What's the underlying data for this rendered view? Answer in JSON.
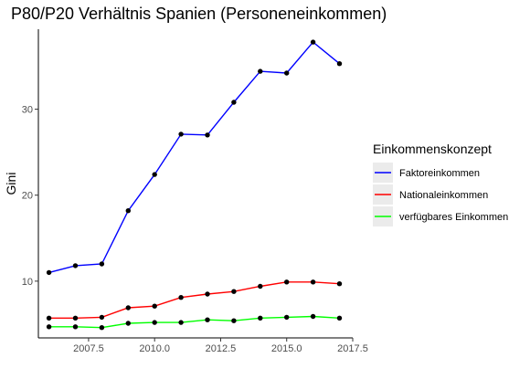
{
  "chart_data": {
    "type": "line",
    "title": "P80/P20 Verhältnis Spanien (Personeneinkommen)",
    "xlabel": "",
    "ylabel": "Gini",
    "x": [
      2006,
      2007,
      2008,
      2009,
      2010,
      2011,
      2012,
      2013,
      2014,
      2015,
      2016,
      2017
    ],
    "xlim": [
      2005.6,
      2017.5
    ],
    "ylim": [
      3.4,
      39.3
    ],
    "x_ticks": [
      2007.5,
      2010.0,
      2012.5,
      2015.0,
      2017.5
    ],
    "x_tick_labels": [
      "2007.5",
      "2010.0",
      "2012.5",
      "2015.0",
      "2017.5"
    ],
    "y_ticks": [
      10,
      20,
      30
    ],
    "y_tick_labels": [
      "10",
      "20",
      "30"
    ],
    "grid": false,
    "legend": {
      "title": "Einkommenskonzept",
      "position": "right"
    },
    "series": [
      {
        "name": "Faktoreinkommen",
        "color": "#0000ff",
        "values": [
          11.0,
          11.8,
          12.0,
          18.2,
          22.4,
          27.1,
          27.0,
          30.8,
          34.4,
          34.2,
          37.8,
          35.3
        ]
      },
      {
        "name": "Nationaleinkommen",
        "color": "#ff0000",
        "values": [
          5.7,
          5.7,
          5.8,
          6.9,
          7.1,
          8.1,
          8.5,
          8.8,
          9.4,
          9.9,
          9.9,
          9.7
        ]
      },
      {
        "name": "verfügbares Einkommen",
        "color": "#00ff00",
        "values": [
          4.7,
          4.7,
          4.6,
          5.1,
          5.2,
          5.2,
          5.5,
          5.4,
          5.7,
          5.8,
          5.9,
          5.7
        ]
      }
    ],
    "point_color": "#000000"
  }
}
